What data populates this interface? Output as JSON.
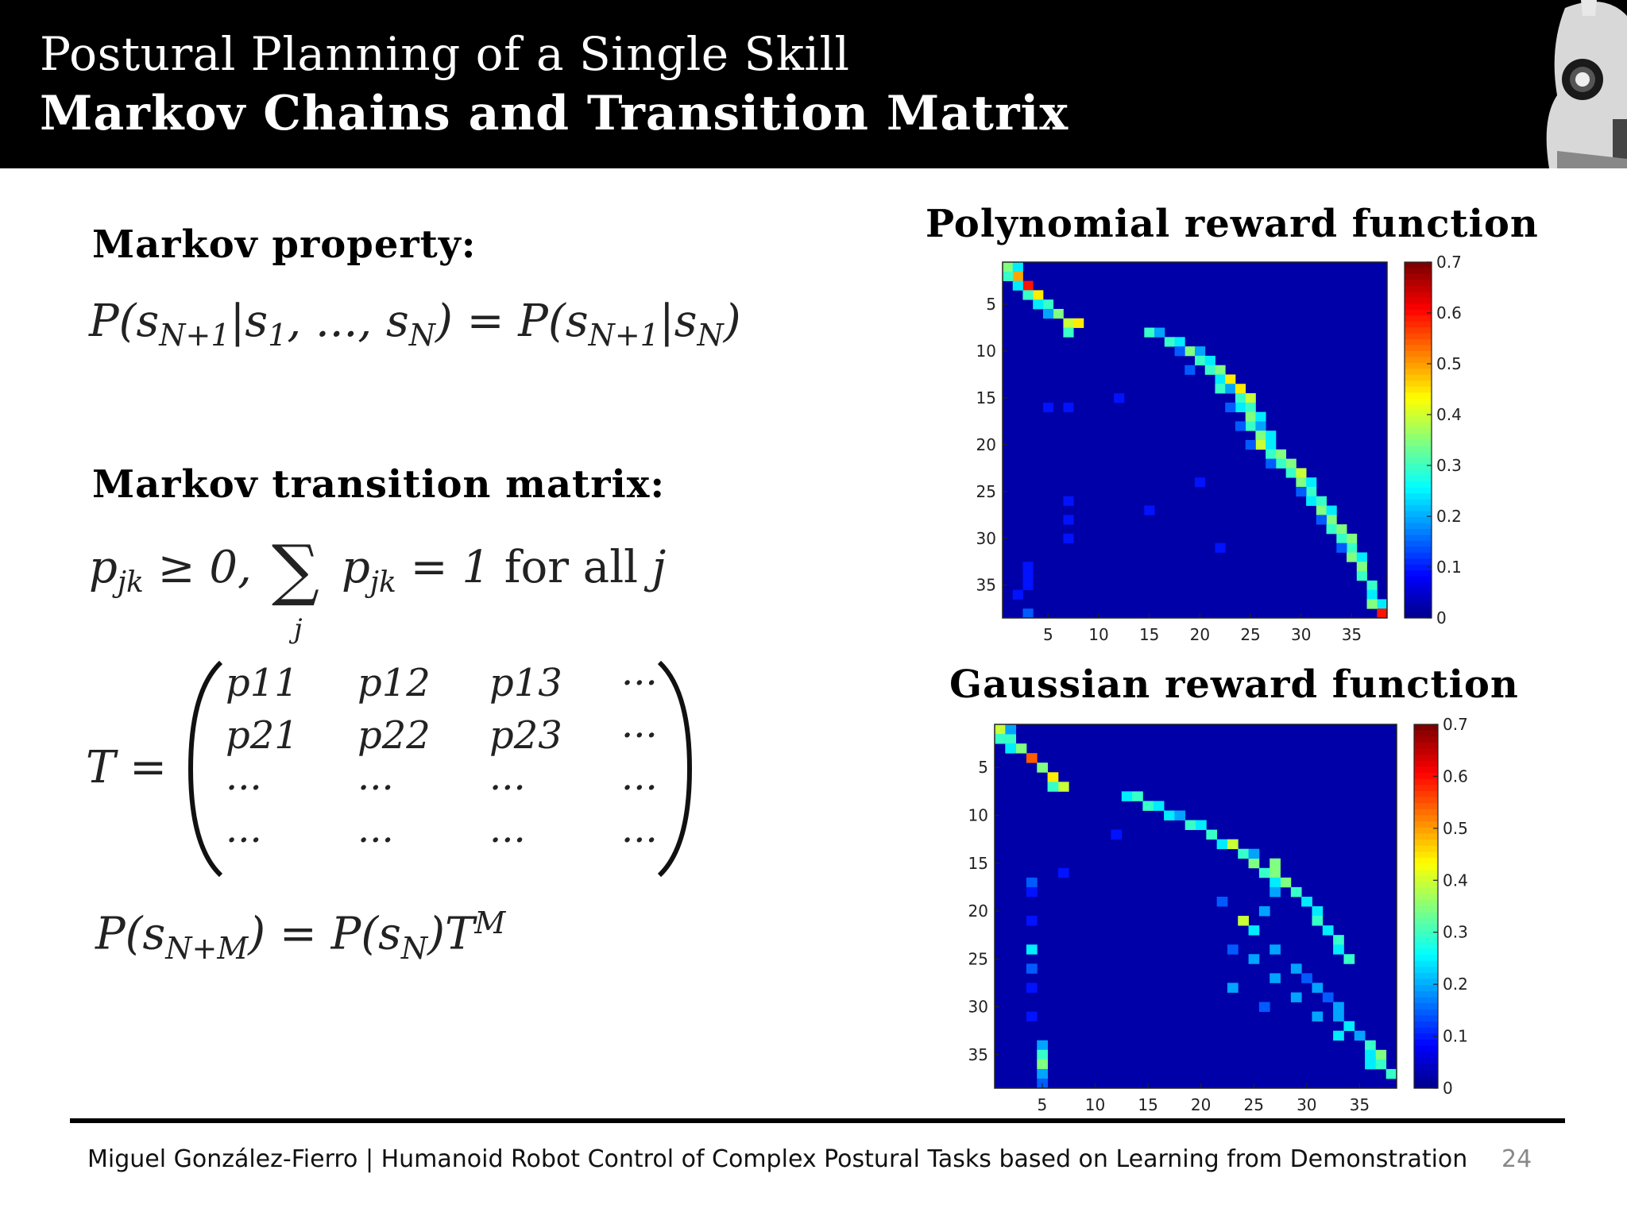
{
  "header": {
    "title_line1": "Postural Planning of a Single Skill",
    "title_line2": "Markov Chains and Transition Matrix"
  },
  "left": {
    "markov_property_heading": "Markov property:",
    "markov_property_eq": "P(s_{N+1}|s_1, ..., s_N) = P(s_{N+1}|s_N)",
    "transition_heading": "Markov transition matrix:",
    "constraint_eq": "p_jk ≥ 0, Σ_j p_jk = 1 for all j",
    "matrix_label": "T =",
    "matrix_rows": [
      [
        "p11",
        "p12",
        "p13",
        "···"
      ],
      [
        "p21",
        "p22",
        "p23",
        "···"
      ],
      [
        "···",
        "···",
        "···",
        "···"
      ],
      [
        "···",
        "···",
        "···",
        "···"
      ]
    ],
    "power_eq": "P(s_{N+M}) = P(s_N)T^M"
  },
  "chart_data": [
    {
      "type": "heatmap",
      "title": "Polynomial reward function",
      "size": 38,
      "x_ticks": [
        5,
        10,
        15,
        20,
        25,
        30,
        35
      ],
      "y_ticks": [
        5,
        10,
        15,
        20,
        25,
        30,
        35
      ],
      "colorbar": {
        "min": 0,
        "max": 0.7,
        "ticks": [
          0,
          0.1,
          0.2,
          0.3,
          0.4,
          0.5,
          0.6,
          0.7
        ]
      },
      "colormap": "jet",
      "cells": [
        [
          1,
          1,
          0.35
        ],
        [
          2,
          2,
          0.5
        ],
        [
          3,
          3,
          0.6
        ],
        [
          4,
          4,
          0.45
        ],
        [
          5,
          5,
          0.3
        ],
        [
          6,
          6,
          0.35
        ],
        [
          7,
          7,
          0.4
        ],
        [
          8,
          7,
          0.3
        ],
        [
          7,
          8,
          0.45
        ],
        [
          2,
          1,
          0.3
        ],
        [
          3,
          2,
          0.25
        ],
        [
          4,
          3,
          0.3
        ],
        [
          5,
          4,
          0.25
        ],
        [
          6,
          5,
          0.2
        ],
        [
          1,
          2,
          0.25
        ],
        [
          8,
          15,
          0.3
        ],
        [
          8,
          16,
          0.2
        ],
        [
          9,
          17,
          0.3
        ],
        [
          9,
          18,
          0.25
        ],
        [
          10,
          19,
          0.35
        ],
        [
          10,
          20,
          0.2
        ],
        [
          11,
          20,
          0.3
        ],
        [
          11,
          21,
          0.25
        ],
        [
          12,
          21,
          0.3
        ],
        [
          12,
          22,
          0.35
        ],
        [
          13,
          22,
          0.25
        ],
        [
          13,
          23,
          0.45
        ],
        [
          14,
          22,
          0.3
        ],
        [
          14,
          23,
          0.2
        ],
        [
          14,
          24,
          0.45
        ],
        [
          15,
          24,
          0.3
        ],
        [
          15,
          25,
          0.4
        ],
        [
          16,
          24,
          0.25
        ],
        [
          16,
          25,
          0.3
        ],
        [
          17,
          25,
          0.35
        ],
        [
          17,
          26,
          0.25
        ],
        [
          18,
          25,
          0.3
        ],
        [
          18,
          26,
          0.2
        ],
        [
          19,
          26,
          0.35
        ],
        [
          19,
          27,
          0.25
        ],
        [
          20,
          26,
          0.4
        ],
        [
          20,
          27,
          0.25
        ],
        [
          21,
          27,
          0.3
        ],
        [
          21,
          28,
          0.35
        ],
        [
          22,
          28,
          0.3
        ],
        [
          22,
          29,
          0.35
        ],
        [
          23,
          29,
          0.3
        ],
        [
          23,
          30,
          0.4
        ],
        [
          24,
          30,
          0.35
        ],
        [
          24,
          31,
          0.25
        ],
        [
          25,
          31,
          0.3
        ],
        [
          26,
          31,
          0.25
        ],
        [
          26,
          32,
          0.3
        ],
        [
          27,
          32,
          0.35
        ],
        [
          27,
          33,
          0.25
        ],
        [
          28,
          33,
          0.35
        ],
        [
          29,
          33,
          0.3
        ],
        [
          29,
          34,
          0.35
        ],
        [
          30,
          34,
          0.3
        ],
        [
          30,
          35,
          0.35
        ],
        [
          31,
          35,
          0.3
        ],
        [
          32,
          35,
          0.35
        ],
        [
          32,
          36,
          0.25
        ],
        [
          33,
          36,
          0.35
        ],
        [
          34,
          36,
          0.3
        ],
        [
          35,
          37,
          0.3
        ],
        [
          36,
          37,
          0.25
        ],
        [
          37,
          38,
          0.25
        ],
        [
          38,
          38,
          0.6
        ],
        [
          37,
          37,
          0.35
        ],
        [
          10,
          18,
          0.15
        ],
        [
          12,
          19,
          0.15
        ],
        [
          16,
          23,
          0.15
        ],
        [
          18,
          24,
          0.15
        ],
        [
          20,
          25,
          0.15
        ],
        [
          22,
          27,
          0.15
        ],
        [
          25,
          30,
          0.15
        ],
        [
          28,
          32,
          0.15
        ],
        [
          31,
          34,
          0.15
        ],
        [
          16,
          7,
          0.1
        ],
        [
          26,
          7,
          0.1
        ],
        [
          28,
          7,
          0.1
        ],
        [
          30,
          7,
          0.1
        ],
        [
          33,
          3,
          0.1
        ],
        [
          34,
          3,
          0.1
        ],
        [
          35,
          3,
          0.1
        ],
        [
          36,
          2,
          0.1
        ],
        [
          38,
          3,
          0.15
        ],
        [
          15,
          12,
          0.1
        ],
        [
          16,
          5,
          0.1
        ],
        [
          27,
          15,
          0.1
        ],
        [
          24,
          20,
          0.1
        ],
        [
          31,
          22,
          0.1
        ]
      ]
    },
    {
      "type": "heatmap",
      "title": "Gaussian reward function",
      "size": 38,
      "x_ticks": [
        5,
        10,
        15,
        20,
        25,
        30,
        35
      ],
      "y_ticks": [
        5,
        10,
        15,
        20,
        25,
        30,
        35
      ],
      "colorbar": {
        "min": 0,
        "max": 0.7,
        "ticks": [
          0,
          0.1,
          0.2,
          0.3,
          0.4,
          0.5,
          0.6,
          0.7
        ]
      },
      "colormap": "jet",
      "cells": [
        [
          1,
          1,
          0.4
        ],
        [
          2,
          2,
          0.3
        ],
        [
          3,
          3,
          0.35
        ],
        [
          4,
          4,
          0.55
        ],
        [
          5,
          5,
          0.35
        ],
        [
          6,
          6,
          0.45
        ],
        [
          7,
          7,
          0.4
        ],
        [
          7,
          6,
          0.3
        ],
        [
          2,
          1,
          0.3
        ],
        [
          3,
          2,
          0.25
        ],
        [
          1,
          2,
          0.2
        ],
        [
          8,
          13,
          0.25
        ],
        [
          8,
          14,
          0.3
        ],
        [
          9,
          15,
          0.3
        ],
        [
          9,
          16,
          0.25
        ],
        [
          10,
          17,
          0.25
        ],
        [
          10,
          18,
          0.2
        ],
        [
          11,
          19,
          0.3
        ],
        [
          11,
          20,
          0.25
        ],
        [
          12,
          21,
          0.3
        ],
        [
          13,
          22,
          0.25
        ],
        [
          13,
          23,
          0.4
        ],
        [
          14,
          24,
          0.3
        ],
        [
          15,
          25,
          0.35
        ],
        [
          16,
          26,
          0.3
        ],
        [
          16,
          27,
          0.35
        ],
        [
          17,
          28,
          0.35
        ],
        [
          18,
          29,
          0.3
        ],
        [
          19,
          30,
          0.25
        ],
        [
          20,
          31,
          0.25
        ],
        [
          21,
          31,
          0.3
        ],
        [
          22,
          32,
          0.25
        ],
        [
          23,
          33,
          0.3
        ],
        [
          24,
          33,
          0.25
        ],
        [
          25,
          34,
          0.3
        ],
        [
          14,
          25,
          0.2
        ],
        [
          15,
          27,
          0.35
        ],
        [
          17,
          27,
          0.25
        ],
        [
          18,
          27,
          0.2
        ],
        [
          20,
          26,
          0.2
        ],
        [
          22,
          25,
          0.25
        ],
        [
          24,
          27,
          0.2
        ],
        [
          26,
          29,
          0.2
        ],
        [
          28,
          31,
          0.2
        ],
        [
          30,
          33,
          0.2
        ],
        [
          32,
          34,
          0.25
        ],
        [
          34,
          36,
          0.3
        ],
        [
          35,
          37,
          0.35
        ],
        [
          36,
          37,
          0.3
        ],
        [
          37,
          38,
          0.3
        ],
        [
          36,
          36,
          0.25
        ],
        [
          21,
          24,
          0.4
        ],
        [
          24,
          23,
          0.15
        ],
        [
          25,
          25,
          0.2
        ],
        [
          27,
          27,
          0.2
        ],
        [
          29,
          29,
          0.2
        ],
        [
          31,
          31,
          0.2
        ],
        [
          33,
          33,
          0.25
        ],
        [
          27,
          30,
          0.15
        ],
        [
          29,
          32,
          0.15
        ],
        [
          31,
          33,
          0.2
        ],
        [
          33,
          35,
          0.2
        ],
        [
          35,
          36,
          0.25
        ],
        [
          17,
          4,
          0.15
        ],
        [
          18,
          4,
          0.1
        ],
        [
          21,
          4,
          0.1
        ],
        [
          24,
          4,
          0.25
        ],
        [
          26,
          4,
          0.15
        ],
        [
          28,
          4,
          0.1
        ],
        [
          31,
          4,
          0.1
        ],
        [
          34,
          5,
          0.2
        ],
        [
          35,
          5,
          0.3
        ],
        [
          36,
          5,
          0.35
        ],
        [
          37,
          5,
          0.2
        ],
        [
          38,
          5,
          0.15
        ],
        [
          19,
          22,
          0.15
        ],
        [
          28,
          23,
          0.2
        ],
        [
          30,
          26,
          0.15
        ],
        [
          12,
          12,
          0.1
        ],
        [
          16,
          7,
          0.1
        ]
      ]
    }
  ],
  "footer": {
    "text": "Miguel González-Fierro  |  Humanoid Robot Control of Complex Postural Tasks based on Learning from Demonstration",
    "page": "24"
  }
}
